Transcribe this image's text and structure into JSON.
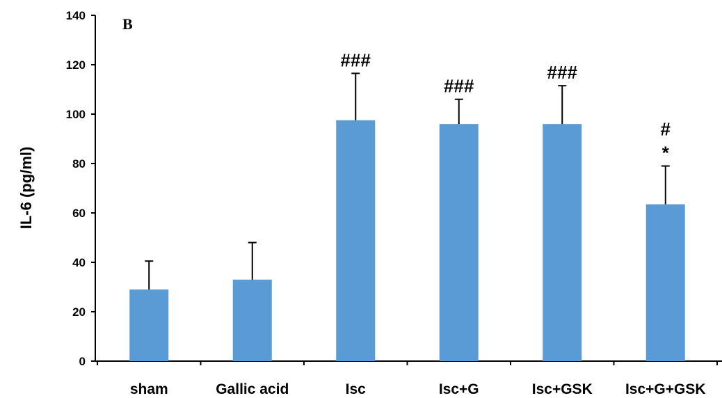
{
  "chart_data": {
    "type": "bar",
    "panel_label": "B",
    "ylabel": "IL-6 (pg/ml)",
    "xlabel": "",
    "ylim": [
      0,
      140
    ],
    "yticks": [
      0,
      20,
      40,
      60,
      80,
      100,
      120,
      140
    ],
    "grid": false,
    "legend": "none",
    "bar_color": "#5b9bd5",
    "categories": [
      "sham",
      "Gallic acid",
      "Isc",
      "Isc+G",
      "Isc+GSK",
      "Isc+G+GSK"
    ],
    "values": [
      29,
      33,
      97.5,
      96,
      96,
      63.5
    ],
    "error_upper": [
      11.5,
      15,
      19,
      10,
      15.5,
      15.5
    ],
    "annotations": [
      {
        "category": "Isc",
        "lines": [
          "###"
        ]
      },
      {
        "category": "Isc+G",
        "lines": [
          "###"
        ]
      },
      {
        "category": "Isc+GSK",
        "lines": [
          "###"
        ]
      },
      {
        "category": "Isc+G+GSK",
        "lines": [
          "#",
          "*"
        ]
      }
    ]
  }
}
